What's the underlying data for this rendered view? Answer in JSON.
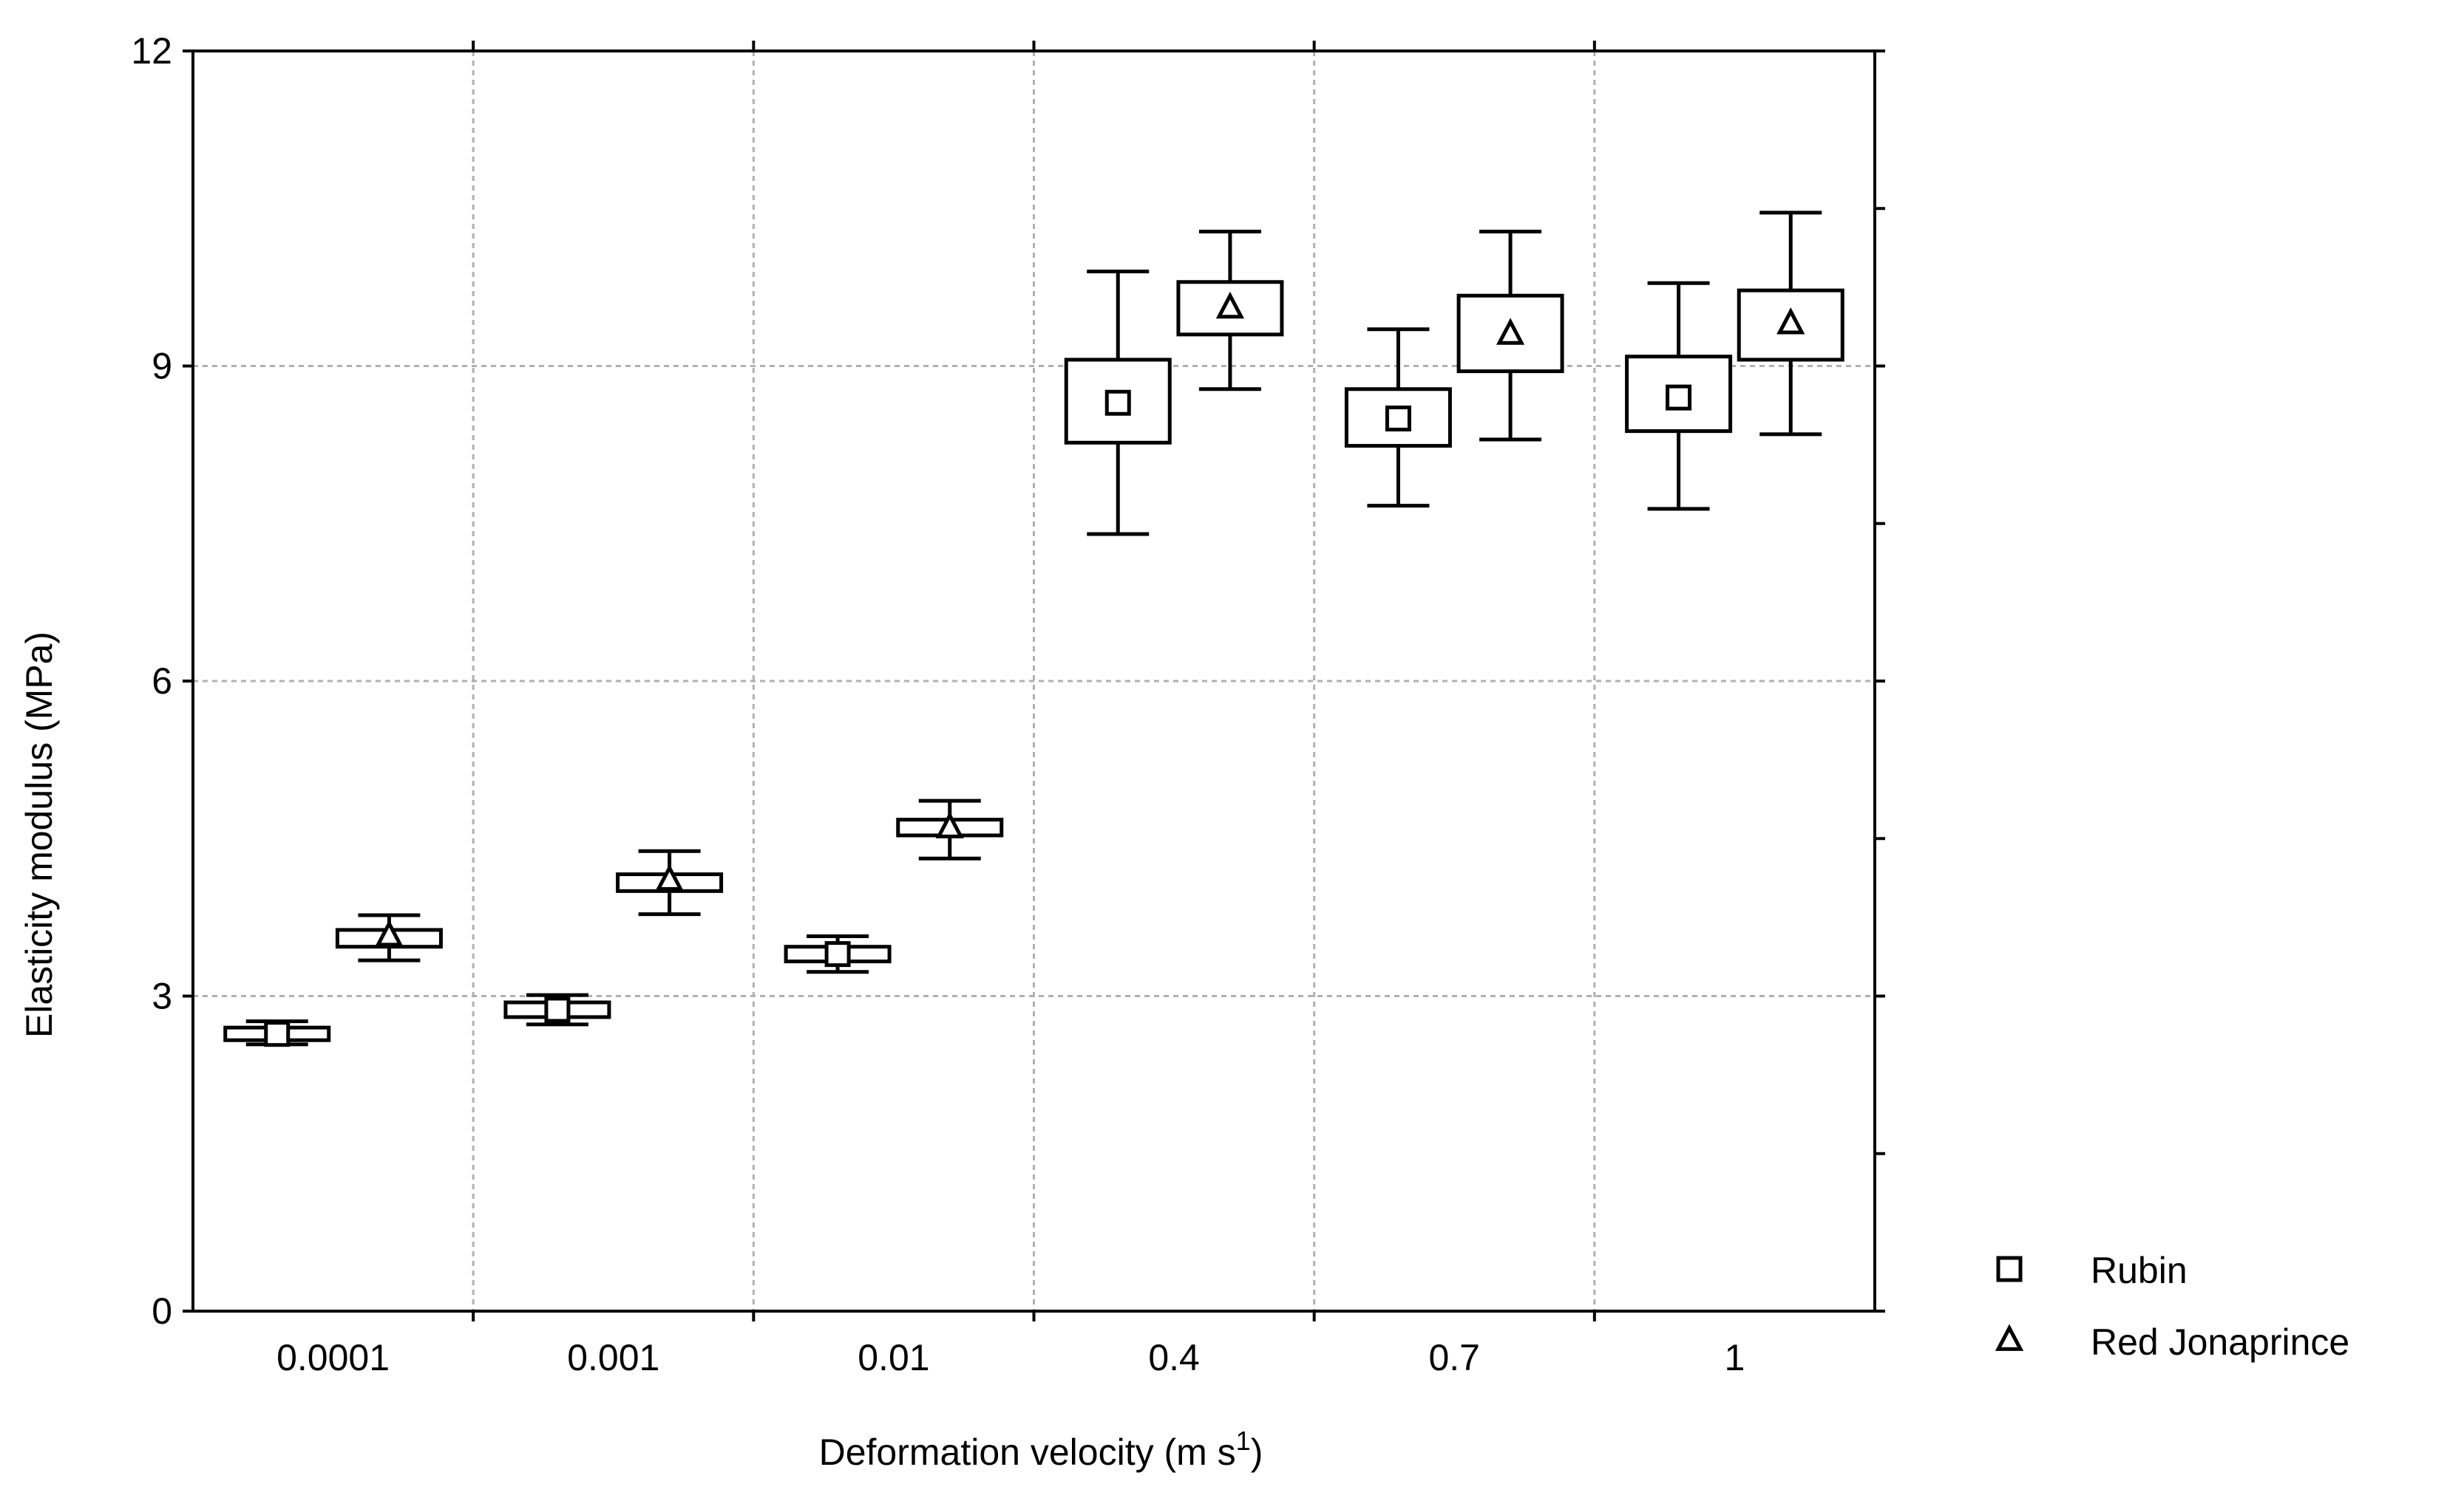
{
  "chart_data": {
    "type": "box",
    "title": "",
    "xlabel": "Deformation velocity (m s",
    "xlabel_overbar": "s",
    "xlabel_superscript": "1",
    "xlabel_close": ")",
    "ylabel": "Elasticity modulus (MPa)",
    "ylim": [
      0,
      12
    ],
    "yticks": [
      0,
      3,
      6,
      9,
      12
    ],
    "ytick_labels": [
      "0",
      "3",
      "6",
      "9",
      "12"
    ],
    "minor_yticks": [
      1.5,
      4.5,
      7.5,
      10.5
    ],
    "categories": [
      "0.0001",
      "0.001",
      "0.01",
      "0.4",
      "0.7",
      "1"
    ],
    "grid": true,
    "legend_position": "right-bottom",
    "series": [
      {
        "name": "Rubin",
        "marker": "square",
        "stats": [
          {
            "mean": 2.64,
            "box_low": 2.58,
            "box_high": 2.7,
            "whisker_low": 2.54,
            "whisker_high": 2.76
          },
          {
            "mean": 2.87,
            "box_low": 2.8,
            "box_high": 2.94,
            "whisker_low": 2.73,
            "whisker_high": 3.01
          },
          {
            "mean": 3.4,
            "box_low": 3.33,
            "box_high": 3.47,
            "whisker_low": 3.23,
            "whisker_high": 3.57
          },
          {
            "mean": 8.65,
            "box_low": 8.27,
            "box_high": 9.06,
            "whisker_low": 7.4,
            "whisker_high": 9.9
          },
          {
            "mean": 8.5,
            "box_low": 8.24,
            "box_high": 8.78,
            "whisker_low": 7.67,
            "whisker_high": 9.35
          },
          {
            "mean": 8.7,
            "box_low": 8.38,
            "box_high": 9.09,
            "whisker_low": 7.64,
            "whisker_high": 9.79
          }
        ]
      },
      {
        "name": "Red Jonaprince",
        "marker": "triangle",
        "stats": [
          {
            "mean": 3.57,
            "box_low": 3.47,
            "box_high": 3.63,
            "whisker_low": 3.34,
            "whisker_high": 3.77
          },
          {
            "mean": 4.1,
            "box_low": 4.0,
            "box_high": 4.16,
            "whisker_low": 3.78,
            "whisker_high": 4.38
          },
          {
            "mean": 4.6,
            "box_low": 4.53,
            "box_high": 4.68,
            "whisker_low": 4.31,
            "whisker_high": 4.86
          },
          {
            "mean": 9.55,
            "box_low": 9.3,
            "box_high": 9.8,
            "whisker_low": 8.78,
            "whisker_high": 10.28
          },
          {
            "mean": 9.3,
            "box_low": 8.95,
            "box_high": 9.67,
            "whisker_low": 8.3,
            "whisker_high": 10.28
          },
          {
            "mean": 9.4,
            "box_low": 9.06,
            "box_high": 9.72,
            "whisker_low": 8.35,
            "whisker_high": 10.46
          }
        ]
      }
    ]
  }
}
